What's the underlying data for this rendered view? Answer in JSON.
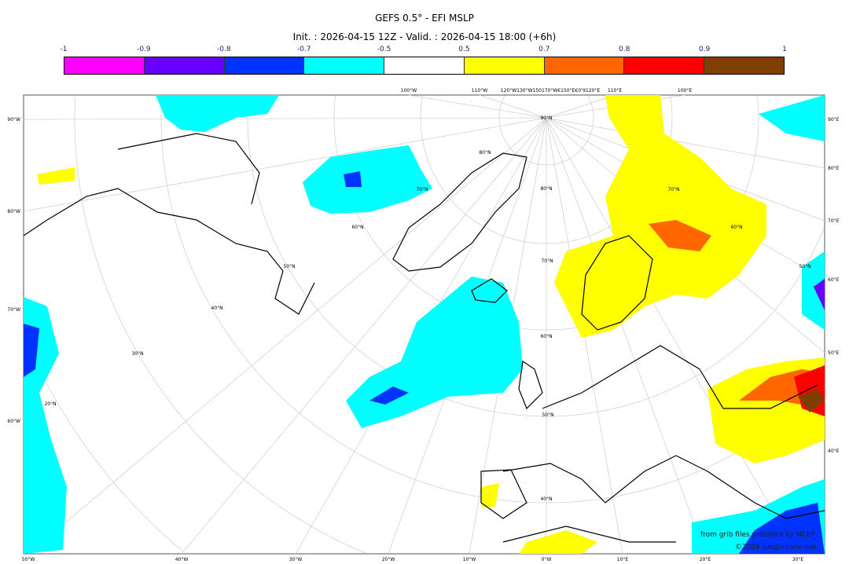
{
  "title": "GEFS 0.5° - EFI MSLP",
  "subtitle": "Init. : 2026-04-15 12Z - Valid. : 2026-04-15 18:00 (+6h)",
  "colorbar": {
    "ticks": [
      "-1",
      "-0.9",
      "-0.8",
      "-0.7",
      "-0.5",
      "0.5",
      "0.7",
      "0.8",
      "0.9",
      "1"
    ],
    "colors": [
      "#ff00ff",
      "#6600ff",
      "#0033ff",
      "#00ffff",
      "#ffffff",
      "#ffff00",
      "#ff6600",
      "#ff0000",
      "#7f3f00"
    ]
  },
  "axes": {
    "left": [
      "90°W",
      "80°W",
      "70°W",
      "60°W"
    ],
    "right": [
      "90°E",
      "80°E",
      "70°E",
      "60°E",
      "50°E",
      "40°E"
    ],
    "bottom": [
      "50°W",
      "40°W",
      "30°W",
      "20°W",
      "10°W",
      "0°W",
      "10°E",
      "20°E",
      "30°E"
    ],
    "top": [
      "100°W",
      "110°W",
      "120°W130°W150170°W€150°E€0°Ⅱ120°E",
      "110°E",
      "100°E"
    ],
    "lat_labels": [
      "90°N",
      "80°N",
      "70°N",
      "60°N",
      "50°N",
      "40°N",
      "30°N",
      "20°N",
      "80°N",
      "70°N",
      "60°N",
      "50°N",
      "40°N",
      "70°N",
      "60°N",
      "50°N"
    ]
  },
  "credits": [
    "from grib files provided by NCEP",
    "©2026 sat@irzone.net"
  ]
}
